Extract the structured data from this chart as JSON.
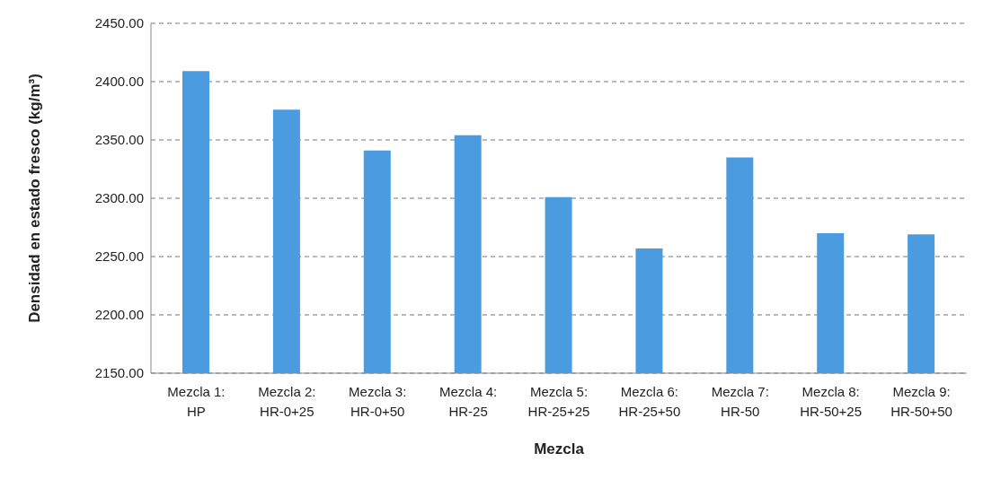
{
  "chart_data": {
    "type": "bar",
    "xlabel": "Mezcla",
    "ylabel": "Densidad en estado fresco (kg/m³)",
    "categories": [
      "Mezcla 1: HP",
      "Mezcla 2: HR-0+25",
      "Mezcla 3: HR-0+50",
      "Mezcla 4: HR-25",
      "Mezcla 5: HR-25+25",
      "Mezcla 6: HR-25+50",
      "Mezcla 7: HR-50",
      "Mezcla 8: HR-50+25",
      "Mezcla 9: HR-50+50"
    ],
    "values": [
      2409,
      2376,
      2341,
      2354,
      2301,
      2257,
      2335,
      2270,
      2269
    ],
    "color": "#4a9be0",
    "ylim": [
      2150,
      2450
    ],
    "yticks": [
      {
        "value": 2150,
        "label": "2150.00"
      },
      {
        "value": 2200,
        "label": "2200.00"
      },
      {
        "value": 2250,
        "label": "2250.00"
      },
      {
        "value": 2300,
        "label": "2300.00"
      },
      {
        "value": 2350,
        "label": "2350.00"
      },
      {
        "value": 2400,
        "label": "2400.00"
      },
      {
        "value": 2450,
        "label": "2450.00"
      }
    ],
    "grid": "y",
    "legend": false
  }
}
